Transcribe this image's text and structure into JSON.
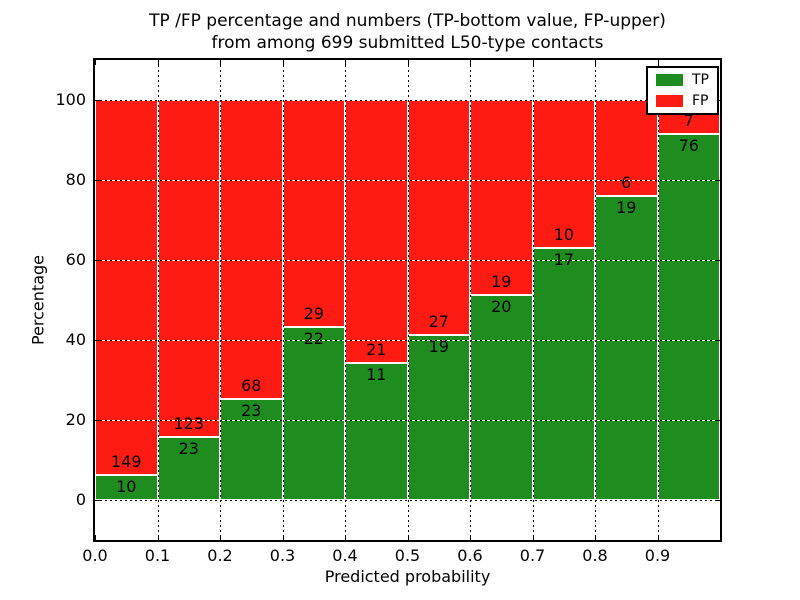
{
  "title": {
    "line1": "TP /FP percentage and numbers (TP-bottom value, FP-upper)",
    "line2": "from among 699 submitted L50-type contacts"
  },
  "axes": {
    "ylabel": "Percentage",
    "xlabel": "Predicted probability",
    "y_tick_labels": [
      "0",
      "20",
      "40",
      "60",
      "80",
      "100"
    ],
    "y_tick_values": [
      0,
      20,
      40,
      60,
      80,
      100
    ],
    "x_tick_labels": [
      "0.0",
      "0.1",
      "0.2",
      "0.3",
      "0.4",
      "0.5",
      "0.6",
      "0.7",
      "0.8",
      "0.9"
    ],
    "x_tick_values": [
      0.0,
      0.1,
      0.2,
      0.3,
      0.4,
      0.5,
      0.6,
      0.7,
      0.8,
      0.9
    ],
    "ylim": [
      -10,
      110
    ],
    "xlim": [
      0,
      1
    ]
  },
  "legend": {
    "items": [
      {
        "label": "TP",
        "color": "#1f8c1f"
      },
      {
        "label": "FP",
        "color": "#fe1b14"
      }
    ]
  },
  "chart_data": {
    "type": "bar",
    "stacked": true,
    "normalized": "each bin stacks to 100%",
    "title": "TP /FP percentage and numbers (TP-bottom value, FP-upper) from among 699 submitted L50-type contacts",
    "xlabel": "Predicted probability",
    "ylabel": "Percentage",
    "xlim": [
      0,
      1
    ],
    "ylim": [
      -10,
      110
    ],
    "grid": true,
    "grid_style": "dotted",
    "legend_position": "upper right",
    "total_contacts": 699,
    "bin_edges": [
      0.0,
      0.1,
      0.2,
      0.3,
      0.4,
      0.5,
      0.6,
      0.7,
      0.8,
      0.9,
      1.0
    ],
    "categories": [
      "0.0-0.1",
      "0.1-0.2",
      "0.2-0.3",
      "0.3-0.4",
      "0.4-0.5",
      "0.5-0.6",
      "0.6-0.7",
      "0.7-0.8",
      "0.8-0.9",
      "0.9-1.0"
    ],
    "series": [
      {
        "name": "TP",
        "color": "#1f8c1f",
        "counts": [
          10,
          23,
          23,
          22,
          11,
          19,
          20,
          17,
          19,
          76
        ]
      },
      {
        "name": "FP",
        "color": "#fe1b14",
        "counts": [
          149,
          123,
          68,
          29,
          21,
          27,
          19,
          10,
          6,
          7
        ]
      }
    ],
    "tp_percent_of_bin": [
      6.3,
      15.8,
      25.3,
      43.1,
      34.4,
      41.3,
      51.3,
      63.0,
      76.0,
      91.6
    ],
    "fp_percent_of_bin": [
      93.7,
      84.2,
      74.7,
      56.9,
      65.6,
      58.7,
      48.7,
      37.0,
      24.0,
      8.4
    ]
  }
}
